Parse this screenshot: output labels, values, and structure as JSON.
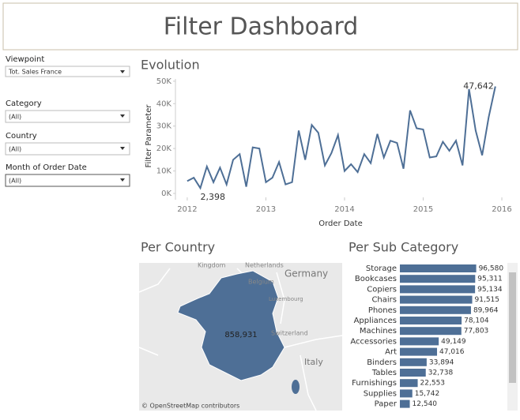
{
  "title": "Filter Dashboard",
  "filters": [
    {
      "label": "Viewpoint",
      "value": "Tot. Sales France"
    },
    {
      "label": "Category",
      "value": "(All)"
    },
    {
      "label": "Country",
      "value": "(All)"
    },
    {
      "label": "Month of Order Date",
      "value": "(All)"
    }
  ],
  "chart_data": [
    {
      "type": "line",
      "title": "Evolution",
      "x_label": "Order Date",
      "y_label": "Filter Parameter",
      "color": "#4e6f96",
      "x": [
        2012,
        2012.083,
        2012.167,
        2012.25,
        2012.333,
        2012.417,
        2012.5,
        2012.583,
        2012.667,
        2012.75,
        2012.833,
        2012.917,
        2013,
        2013.083,
        2013.167,
        2013.25,
        2013.333,
        2013.417,
        2013.5,
        2013.583,
        2013.667,
        2013.75,
        2013.833,
        2013.917,
        2014,
        2014.083,
        2014.167,
        2014.25,
        2014.333,
        2014.417,
        2014.5,
        2014.583,
        2014.667,
        2014.75,
        2014.833,
        2014.917,
        2015,
        2015.083,
        2015.167,
        2015.25,
        2015.333,
        2015.417,
        2015.5,
        2015.583,
        2015.667,
        2015.75,
        2015.833,
        2015.917
      ],
      "values": [
        5500,
        7000,
        2398,
        12000,
        5000,
        11500,
        4000,
        15000,
        17500,
        3000,
        20500,
        20000,
        5000,
        7000,
        14000,
        4000,
        5000,
        28000,
        15000,
        30500,
        27000,
        12500,
        18000,
        26000,
        10000,
        13000,
        9500,
        17500,
        13500,
        26500,
        16000,
        23500,
        22500,
        11000,
        37000,
        29000,
        28500,
        16000,
        16500,
        23000,
        19000,
        23500,
        12500,
        46500,
        28000,
        17000,
        34000,
        47642
      ],
      "value_labels": [
        null,
        null,
        "2,398",
        null,
        null,
        null,
        null,
        null,
        null,
        null,
        null,
        null,
        null,
        null,
        null,
        null,
        null,
        null,
        null,
        null,
        null,
        null,
        null,
        null,
        null,
        null,
        null,
        null,
        null,
        null,
        null,
        null,
        null,
        null,
        null,
        null,
        null,
        null,
        null,
        null,
        null,
        null,
        null,
        null,
        null,
        null,
        null,
        "47,642"
      ],
      "xlim": [
        2011.85,
        2016.05
      ],
      "xticks": [
        2012,
        2013,
        2014,
        2015,
        2016
      ],
      "ylim": [
        0,
        51000
      ],
      "yticks": [
        {
          "value": 0,
          "label": "0K"
        },
        {
          "value": 10000,
          "label": "10K"
        },
        {
          "value": 20000,
          "label": "20K"
        },
        {
          "value": 30000,
          "label": "30K"
        },
        {
          "value": 40000,
          "label": "40K"
        },
        {
          "value": 50000,
          "label": "50K"
        }
      ],
      "grid": false
    },
    {
      "type": "hbar",
      "title": "Per Sub Category",
      "color": "#4e6f96",
      "categories": [
        "Storage",
        "Bookcases",
        "Copiers",
        "Chairs",
        "Phones",
        "Appliances",
        "Machines",
        "Accessories",
        "Art",
        "Binders",
        "Tables",
        "Furnishings",
        "Supplies",
        "Paper"
      ],
      "values": [
        96580,
        95311,
        95134,
        91515,
        89964,
        78104,
        77803,
        49149,
        47016,
        33894,
        32738,
        22553,
        15742,
        12540
      ],
      "value_labels": [
        "96,580",
        "95,311",
        "95,134",
        "91,515",
        "89,964",
        "78,104",
        "77,803",
        "49,149",
        "47,016",
        "33,894",
        "32,738",
        "22,553",
        "15,742",
        "12,540"
      ],
      "xlim": [
        0,
        100000
      ]
    }
  ],
  "map": {
    "title": "Per Country",
    "value": 858931,
    "value_label": "858,931",
    "places": [
      "Kingdom",
      "Netherlands",
      "Belgium",
      "Germany",
      "Luxembourg",
      "Switzerland",
      "Italy"
    ],
    "credit": "© OpenStreetMap contributors"
  }
}
